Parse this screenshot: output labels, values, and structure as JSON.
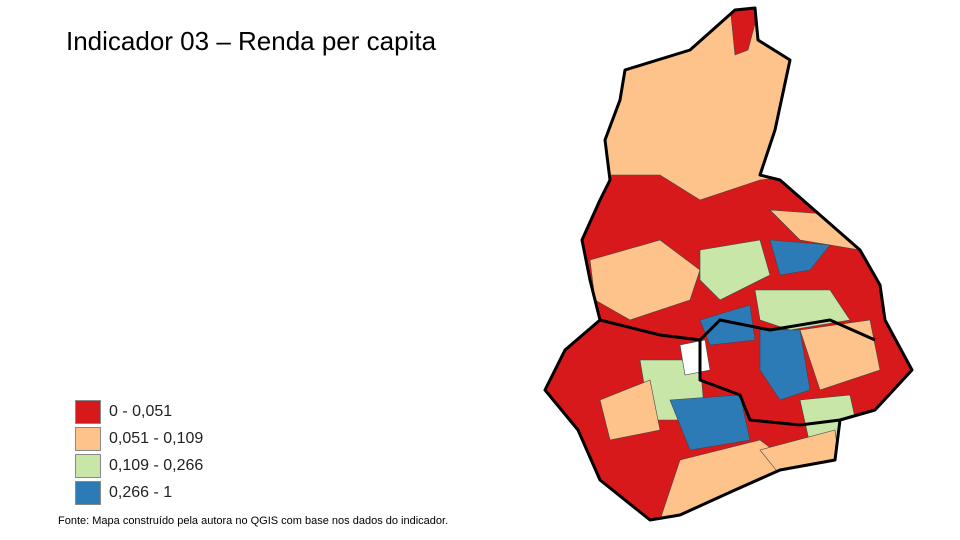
{
  "title": "Indicador 03 – Renda per capita",
  "legend": {
    "items": [
      {
        "label": "0 - 0,051",
        "color": "#d7191c"
      },
      {
        "label": "0,051 - 0,109",
        "color": "#fdc38a"
      },
      {
        "label": "0,109 - 0,266",
        "color": "#c8e6a8"
      },
      {
        "label": "0,266 - 1",
        "color": "#2c7bb6"
      }
    ]
  },
  "source": "Fonte: Mapa construído pela autora no QGIS com base nos dados do indicador."
}
